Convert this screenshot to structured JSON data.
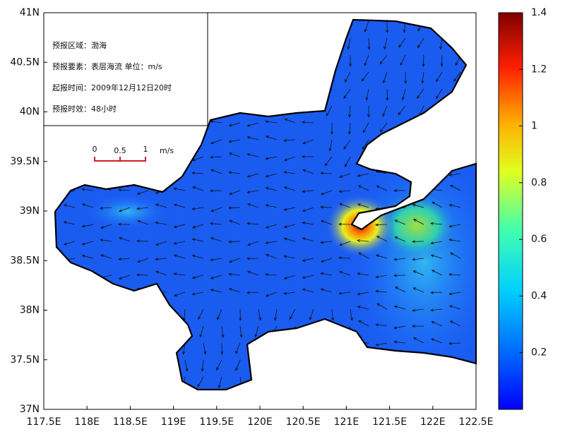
{
  "info": {
    "lines": [
      "预报区域：渤海",
      "预报要素：表层海流 单位：m/s",
      "起报时间：2009年12月12日20时",
      "预报时效：48小时"
    ]
  },
  "scale_bar": {
    "ticks": [
      "0",
      "0.5",
      "1"
    ],
    "unit": "m/s"
  },
  "map": {
    "xlim": [
      117.5,
      122.5
    ],
    "ylim": [
      37,
      41
    ],
    "xticks": [
      {
        "value": 117.5,
        "label": "117.5E"
      },
      {
        "value": 118,
        "label": "118E"
      },
      {
        "value": 118.5,
        "label": "118.5E"
      },
      {
        "value": 119,
        "label": "119E"
      },
      {
        "value": 119.5,
        "label": "119.5E"
      },
      {
        "value": 120,
        "label": "120E"
      },
      {
        "value": 120.5,
        "label": "120.5E"
      },
      {
        "value": 121,
        "label": "121E"
      },
      {
        "value": 121.5,
        "label": "121.5E"
      },
      {
        "value": 122,
        "label": "122E"
      },
      {
        "value": 122.5,
        "label": "122.5E"
      }
    ],
    "yticks": [
      {
        "value": 37,
        "label": "37N"
      },
      {
        "value": 37.5,
        "label": "37.5N"
      },
      {
        "value": 38,
        "label": "38N"
      },
      {
        "value": 38.5,
        "label": "38.5N"
      },
      {
        "value": 39,
        "label": "39N"
      },
      {
        "value": 39.5,
        "label": "39.5N"
      },
      {
        "value": 40,
        "label": "40N"
      },
      {
        "value": 40.5,
        "label": "40.5N"
      },
      {
        "value": 41,
        "label": "41N"
      }
    ]
  },
  "colorbar": {
    "range": [
      0,
      1.4
    ],
    "ticks": [
      0.2,
      0.4,
      0.6,
      0.8,
      1,
      1.2,
      1.4
    ]
  }
}
